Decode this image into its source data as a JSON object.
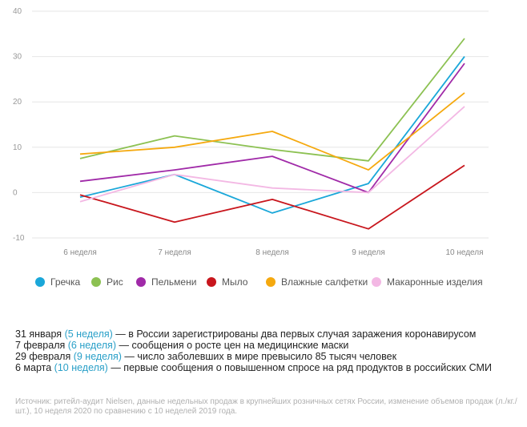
{
  "chart_data": {
    "type": "line",
    "categories": [
      "6 неделя",
      "7 неделя",
      "8 неделя",
      "9 неделя",
      "10 неделя"
    ],
    "y_ticks": [
      -10,
      0,
      10,
      20,
      30,
      40
    ],
    "ylim": [
      -10,
      40
    ],
    "grid": true,
    "legend_position": "bottom",
    "series": [
      {
        "name": "Гречка",
        "color": "#1aa7d9",
        "values": [
          -1,
          4,
          -4.5,
          2,
          30
        ]
      },
      {
        "name": "Рис",
        "color": "#8cc152",
        "values": [
          7.5,
          12.5,
          9.5,
          7,
          34
        ]
      },
      {
        "name": "Пельмени",
        "color": "#a02aa8",
        "values": [
          2.5,
          5,
          8,
          0,
          28.5
        ]
      },
      {
        "name": "Мыло",
        "color": "#c8161d",
        "values": [
          -0.5,
          -6.5,
          -1.5,
          -8,
          6
        ]
      },
      {
        "name": "Влажные салфетки",
        "color": "#f5a90f",
        "values": [
          8.5,
          10,
          13.5,
          5,
          22
        ]
      },
      {
        "name": "Макаронные изделия",
        "color": "#f3b8e4",
        "values": [
          -2,
          4,
          1,
          0,
          19
        ]
      }
    ]
  },
  "notes": [
    {
      "date": "31 января",
      "week": "(5 неделя)",
      "text": " — в России зарегистрированы два первых случая заражения коронавирусом"
    },
    {
      "date": "7 февраля",
      "week": "(6 неделя)",
      "text": " — сообщения о росте цен на медицинские маски"
    },
    {
      "date": "29 февраля",
      "week": "(9 неделя)",
      "text": " — число заболевших в мире превысило 85 тысяч человек"
    },
    {
      "date": "6 марта",
      "week": "(10 неделя)",
      "text": " — первые сообщения о повышенном спросе на ряд продуктов в российских СМИ"
    }
  ],
  "source": "Источник: ритейл-аудит Nielsen, данные недельных продаж в крупнейших розничных сетях России, изменение объемов продаж (л./кг./шт.), 10 неделя 2020 по сравнению с 10 неделей 2019 года."
}
